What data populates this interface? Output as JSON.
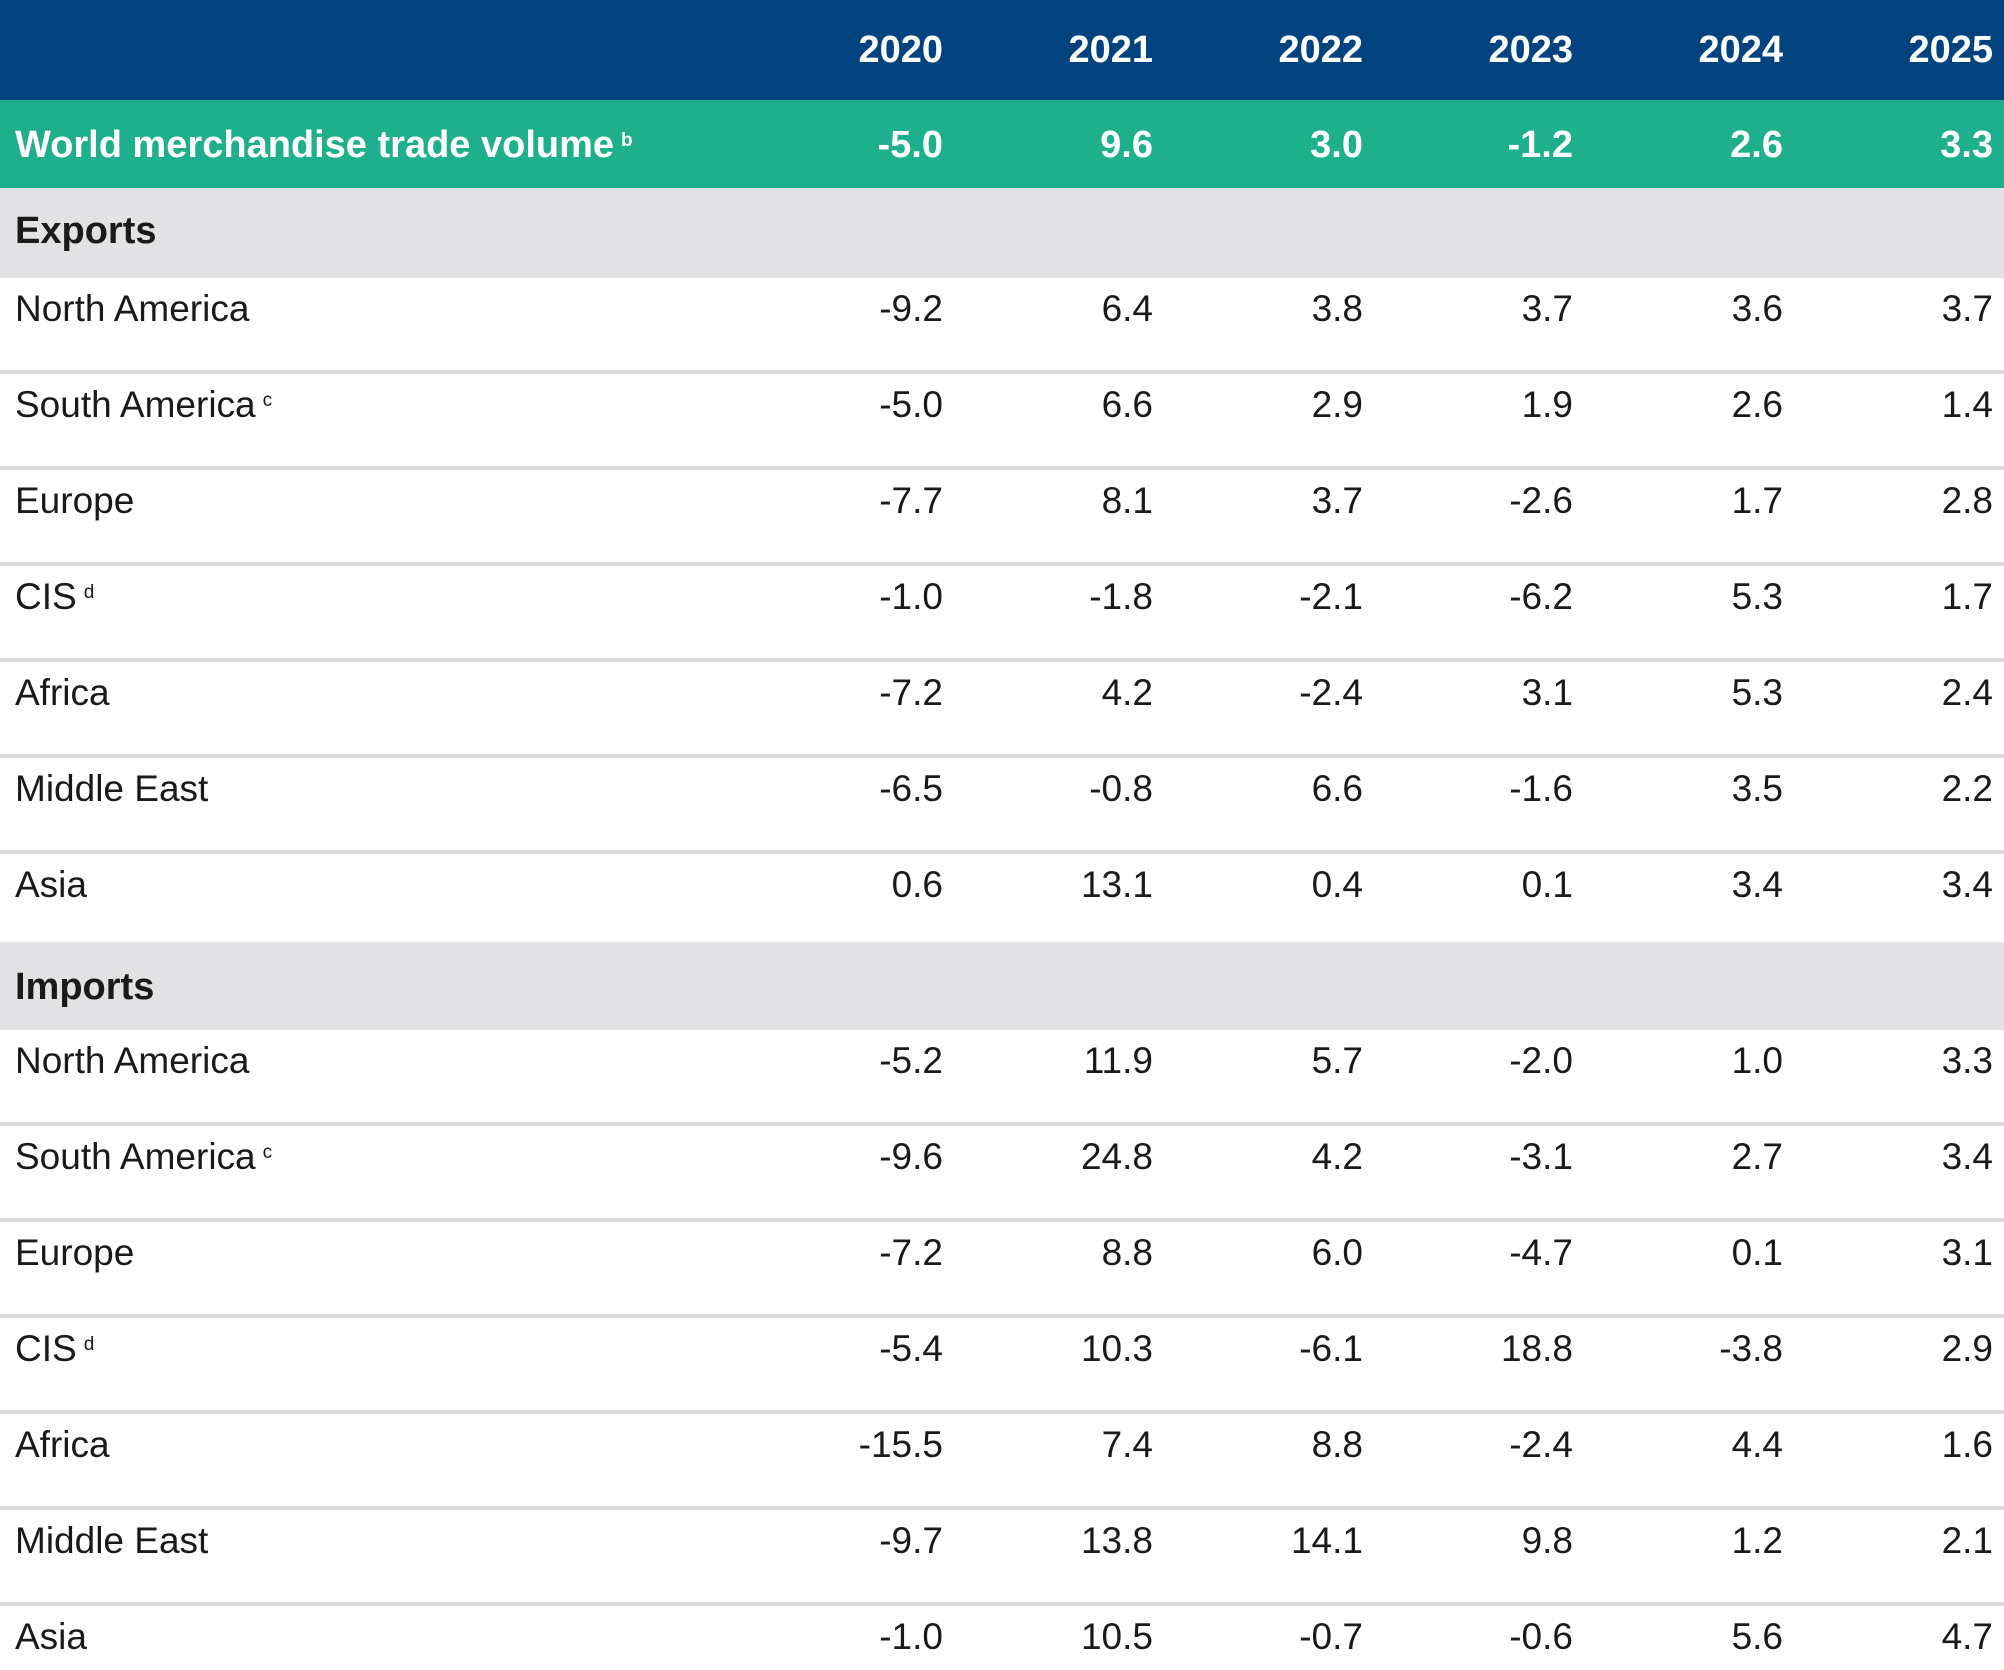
{
  "chart_data": {
    "type": "table",
    "columns": [
      "2020",
      "2021",
      "2022",
      "2023",
      "2024",
      "2025"
    ],
    "total": {
      "label": "World merchandise trade volume",
      "note": "b",
      "values": [
        "-5.0",
        "9.6",
        "3.0",
        "-1.2",
        "2.6",
        "3.3"
      ]
    },
    "sections": [
      {
        "title": "Exports",
        "rows": [
          {
            "label": "North America",
            "note": "",
            "values": [
              "-9.2",
              "6.4",
              "3.8",
              "3.7",
              "3.6",
              "3.7"
            ]
          },
          {
            "label": "South America",
            "note": "c",
            "values": [
              "-5.0",
              "6.6",
              "2.9",
              "1.9",
              "2.6",
              "1.4"
            ]
          },
          {
            "label": "Europe",
            "note": "",
            "values": [
              "-7.7",
              "8.1",
              "3.7",
              "-2.6",
              "1.7",
              "2.8"
            ]
          },
          {
            "label": "CIS",
            "note": "d",
            "values": [
              "-1.0",
              "-1.8",
              "-2.1",
              "-6.2",
              "5.3",
              "1.7"
            ]
          },
          {
            "label": "Africa",
            "note": "",
            "values": [
              "-7.2",
              "4.2",
              "-2.4",
              "3.1",
              "5.3",
              "2.4"
            ]
          },
          {
            "label": "Middle East",
            "note": "",
            "values": [
              "-6.5",
              "-0.8",
              "6.6",
              "-1.6",
              "3.5",
              "2.2"
            ]
          },
          {
            "label": "Asia",
            "note": "",
            "values": [
              "0.6",
              "13.1",
              "0.4",
              "0.1",
              "3.4",
              "3.4"
            ]
          }
        ]
      },
      {
        "title": "Imports",
        "rows": [
          {
            "label": "North America",
            "note": "",
            "values": [
              "-5.2",
              "11.9",
              "5.7",
              "-2.0",
              "1.0",
              "3.3"
            ]
          },
          {
            "label": "South America",
            "note": "c",
            "values": [
              "-9.6",
              "24.8",
              "4.2",
              "-3.1",
              "2.7",
              "3.4"
            ]
          },
          {
            "label": "Europe",
            "note": "",
            "values": [
              "-7.2",
              "8.8",
              "6.0",
              "-4.7",
              "0.1",
              "3.1"
            ]
          },
          {
            "label": "CIS",
            "note": "d",
            "values": [
              "-5.4",
              "10.3",
              "-6.1",
              "18.8",
              "-3.8",
              "2.9"
            ]
          },
          {
            "label": "Africa",
            "note": "",
            "values": [
              "-15.5",
              "7.4",
              "8.8",
              "-2.4",
              "4.4",
              "1.6"
            ]
          },
          {
            "label": "Middle East",
            "note": "",
            "values": [
              "-9.7",
              "13.8",
              "14.1",
              "9.8",
              "1.2",
              "2.1"
            ]
          },
          {
            "label": "Asia",
            "note": "",
            "values": [
              "-1.0",
              "10.5",
              "-0.7",
              "-0.6",
              "5.6",
              "4.7"
            ]
          }
        ]
      }
    ]
  },
  "colors": {
    "header_bg": "#00437f",
    "total_bg": "#1eaf8d",
    "section_bg": "#e2e1e3",
    "row_separator": "#dcdcdc"
  }
}
